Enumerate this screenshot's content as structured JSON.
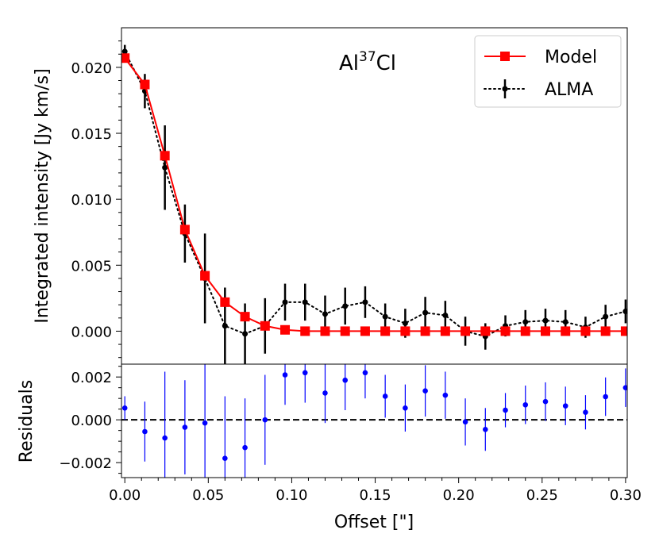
{
  "chart_data": [
    {
      "type": "line",
      "panel": "top",
      "title": "Al37Cl",
      "title_parts": {
        "base": "Al",
        "sup": "37",
        "tail": "Cl"
      },
      "xlabel": "",
      "ylabel": "Integrated intensity [Jy km/s]",
      "xlim": [
        -0.002,
        0.301
      ],
      "ylim": [
        -0.0025,
        0.023
      ],
      "yticks": [
        0.0,
        0.005,
        0.01,
        0.015,
        0.02
      ],
      "ytick_labels": [
        "0.000",
        "0.005",
        "0.010",
        "0.015",
        "0.020"
      ],
      "legend": {
        "placement": "top-right",
        "entries": [
          "Model",
          "ALMA"
        ]
      },
      "series": [
        {
          "name": "Model",
          "color": "#ff0000",
          "marker": "square",
          "linestyle": "solid",
          "x": [
            0.0,
            0.012,
            0.024,
            0.036,
            0.048,
            0.06,
            0.072,
            0.084,
            0.096,
            0.108,
            0.12,
            0.132,
            0.144,
            0.156,
            0.168,
            0.18,
            0.192,
            0.204,
            0.216,
            0.228,
            0.24,
            0.252,
            0.264,
            0.276,
            0.288,
            0.3
          ],
          "y": [
            0.0207,
            0.0187,
            0.0133,
            0.0077,
            0.0042,
            0.0022,
            0.0011,
            0.0004,
            0.0001,
            0.0,
            0.0,
            0.0,
            0.0,
            0.0,
            0.0,
            0.0,
            0.0,
            0.0,
            0.0,
            0.0,
            0.0,
            0.0,
            0.0,
            0.0,
            0.0,
            0.0
          ]
        },
        {
          "name": "ALMA",
          "color": "#000000",
          "marker": "circle",
          "linestyle": "dotted",
          "x": [
            0.0,
            0.012,
            0.024,
            0.036,
            0.048,
            0.06,
            0.072,
            0.084,
            0.096,
            0.108,
            0.12,
            0.132,
            0.144,
            0.156,
            0.168,
            0.18,
            0.192,
            0.204,
            0.216,
            0.228,
            0.24,
            0.252,
            0.264,
            0.276,
            0.288,
            0.3
          ],
          "y": [
            0.0212,
            0.0182,
            0.0124,
            0.0074,
            0.004,
            0.0004,
            -0.0002,
            0.0004,
            0.0022,
            0.0022,
            0.0013,
            0.0019,
            0.0022,
            0.0011,
            0.0006,
            0.0014,
            0.0012,
            0.0,
            -0.0004,
            0.0004,
            0.0007,
            0.0008,
            0.0007,
            0.0003,
            0.0011,
            0.0015
          ],
          "err": [
            0.0005,
            0.0013,
            0.0032,
            0.0022,
            0.0034,
            0.0029,
            0.0023,
            0.0021,
            0.0014,
            0.0014,
            0.0014,
            0.0014,
            0.0012,
            0.001,
            0.0011,
            0.0012,
            0.0011,
            0.0011,
            0.001,
            0.0008,
            0.0009,
            0.0009,
            0.0009,
            0.0008,
            0.0009,
            0.0009
          ]
        }
      ]
    },
    {
      "type": "scatter",
      "panel": "bottom",
      "title": "",
      "xlabel": "Offset [\"]",
      "ylabel": "Residuals",
      "xlim": [
        -0.002,
        0.301
      ],
      "ylim": [
        -0.0027,
        0.0026
      ],
      "xticks": [
        0.0,
        0.05,
        0.1,
        0.15,
        0.2,
        0.25,
        0.3
      ],
      "xtick_labels": [
        "0.00",
        "0.05",
        "0.10",
        "0.15",
        "0.20",
        "0.25",
        "0.30"
      ],
      "yticks": [
        -0.002,
        0.0,
        0.002
      ],
      "ytick_labels": [
        "−0.002",
        "0.000",
        "0.002"
      ],
      "reference_line": {
        "y": 0.0,
        "style": "dashed",
        "color": "#000000"
      },
      "series": [
        {
          "name": "Residuals",
          "color": "#0000ff",
          "marker": "circle",
          "x": [
            0.0,
            0.012,
            0.024,
            0.036,
            0.048,
            0.06,
            0.072,
            0.084,
            0.096,
            0.108,
            0.12,
            0.132,
            0.144,
            0.156,
            0.168,
            0.18,
            0.192,
            0.204,
            0.216,
            0.228,
            0.24,
            0.252,
            0.264,
            0.276,
            0.288,
            0.3
          ],
          "y": [
            0.00055,
            -0.00055,
            -0.00085,
            -0.00035,
            -0.00015,
            -0.0018,
            -0.0013,
            0.0,
            0.0021,
            0.0022,
            0.00125,
            0.00185,
            0.0022,
            0.0011,
            0.00055,
            0.00135,
            0.00115,
            -0.0001,
            -0.00045,
            0.00045,
            0.0007,
            0.00085,
            0.00065,
            0.00035,
            0.00108,
            0.0015
          ],
          "err": [
            0.00055,
            0.0014,
            0.0031,
            0.0022,
            0.0034,
            0.0029,
            0.0023,
            0.0021,
            0.0014,
            0.0014,
            0.0014,
            0.0014,
            0.0012,
            0.001,
            0.0011,
            0.0012,
            0.0011,
            0.0011,
            0.001,
            0.0008,
            0.0009,
            0.0009,
            0.0009,
            0.0008,
            0.0009,
            0.0009
          ]
        }
      ]
    }
  ]
}
